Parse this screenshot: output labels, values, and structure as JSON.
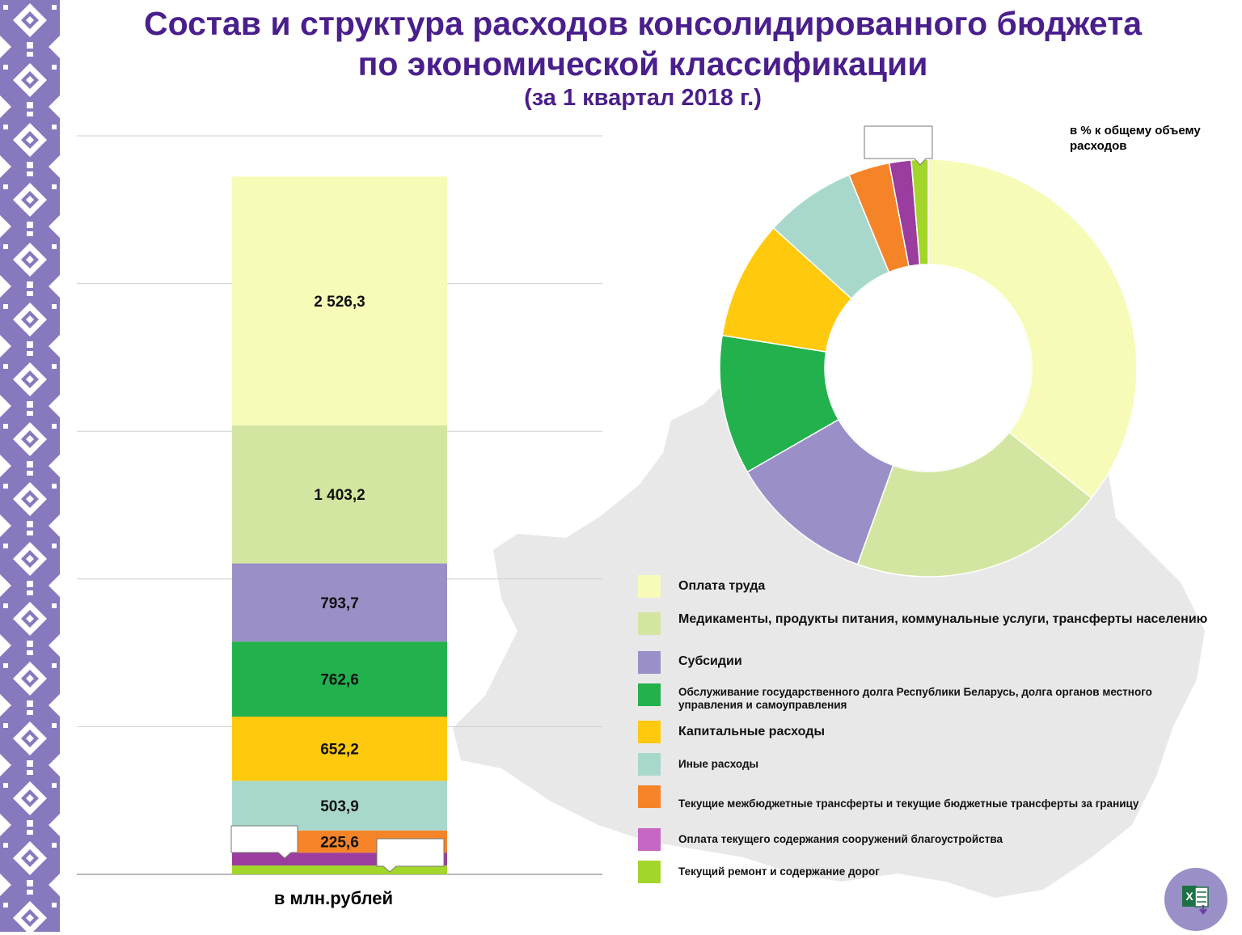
{
  "title": {
    "line1": "Состав и структура расходов консолидированного бюджета",
    "line2": "по экономической классификации",
    "line3": "(за 1 квартал 2018 г.)"
  },
  "colors": {
    "title": "#4a1f8c",
    "border": "#8878bd",
    "map": "#e8e8e8"
  },
  "chart_data": [
    {
      "type": "bar",
      "stacked": true,
      "xlabel": "в млн.рублей",
      "categories": [
        "в млн.рублей"
      ],
      "ylim": [
        0,
        7500
      ],
      "grid": true,
      "series": [
        {
          "name": "Текущий ремонт и содержание дорог",
          "value": 90,
          "label": "",
          "color": "#a3d62a"
        },
        {
          "name": "Оплата текущего содержания сооружений благоустройства",
          "value": 130,
          "label": "",
          "color": "#9a3d9e"
        },
        {
          "name": "Текущие межбюджетные трансферты и текущие бюджетные трансферты за границу",
          "value": 225.6,
          "label": "225,6",
          "color": "#f58428"
        },
        {
          "name": "Иные расходы",
          "value": 503.9,
          "label": "503,9",
          "color": "#a8d8cc"
        },
        {
          "name": "Капитальные расходы",
          "value": 652.2,
          "label": "652,2",
          "color": "#ffc90e"
        },
        {
          "name": "Обслуживание государственного долга Республики Беларусь, долга органов местного управления и самоуправления",
          "value": 762.6,
          "label": "762,6",
          "color": "#22b14c"
        },
        {
          "name": "Субсидии",
          "value": 793.7,
          "label": "793,7",
          "color": "#9b8fc7"
        },
        {
          "name": "Медикаменты, продукты питания, коммунальные услуги, трансферты населению",
          "value": 1403.2,
          "label": "1 403,2",
          "color": "#d3e6a1"
        },
        {
          "name": "Оплата труда",
          "value": 2526.3,
          "label": "2 526,3",
          "color": "#f7fbb8"
        }
      ]
    },
    {
      "type": "pie",
      "subtitle": "в % к общему объему расходов",
      "donut": true,
      "start_angle_deg": 0,
      "slices": [
        {
          "name": "Оплата труда",
          "value": 35.7,
          "color": "#f7fbb8"
        },
        {
          "name": "Медикаменты, продукты питания, коммунальные услуги, трансферты населению",
          "value": 19.8,
          "color": "#d3e6a1"
        },
        {
          "name": "Субсидии",
          "value": 11.2,
          "color": "#9b8fc7"
        },
        {
          "name": "Обслуживание государственного долга Республики Беларусь, долга органов местного управления и самоуправления",
          "value": 10.8,
          "color": "#22b14c"
        },
        {
          "name": "Капитальные расходы",
          "value": 9.2,
          "color": "#ffc90e"
        },
        {
          "name": "Иные расходы",
          "value": 7.1,
          "color": "#a8d8cc"
        },
        {
          "name": "Текущие межбюджетные трансферты и текущие бюджетные трансферты за границу",
          "value": 3.2,
          "color": "#f58428"
        },
        {
          "name": "Оплата текущего содержания сооружений благоустройства",
          "value": 1.7,
          "color": "#9a3d9e"
        },
        {
          "name": "Текущий ремонт и содержание дорог",
          "value": 1.3,
          "color": "#a3d62a"
        }
      ]
    }
  ],
  "legend": [
    {
      "label": "Оплата труда",
      "color": "#f7fbb8"
    },
    {
      "label": "Медикаменты, продукты питания, коммунальные услуги, трансферты населению",
      "color": "#d3e6a1"
    },
    {
      "label": "Субсидии",
      "color": "#9b8fc7"
    },
    {
      "label": "Обслуживание государственного долга Республики Беларусь, долга органов местного управления и самоуправления",
      "color": "#22b14c"
    },
    {
      "label": "Капитальные расходы",
      "color": "#ffc90e"
    },
    {
      "label": "Иные расходы",
      "color": "#a8d8cc"
    },
    {
      "label": "Текущие межбюджетные трансферты и текущие бюджетные трансферты за границу",
      "color": "#f58428"
    },
    {
      "label": "Оплата текущего содержания сооружений благоустройства",
      "color": "#c667c4"
    },
    {
      "label": "Текущий ремонт и содержание дорог",
      "color": "#a3d62a"
    }
  ],
  "actions": {
    "excel_icon": "excel-download-icon"
  }
}
